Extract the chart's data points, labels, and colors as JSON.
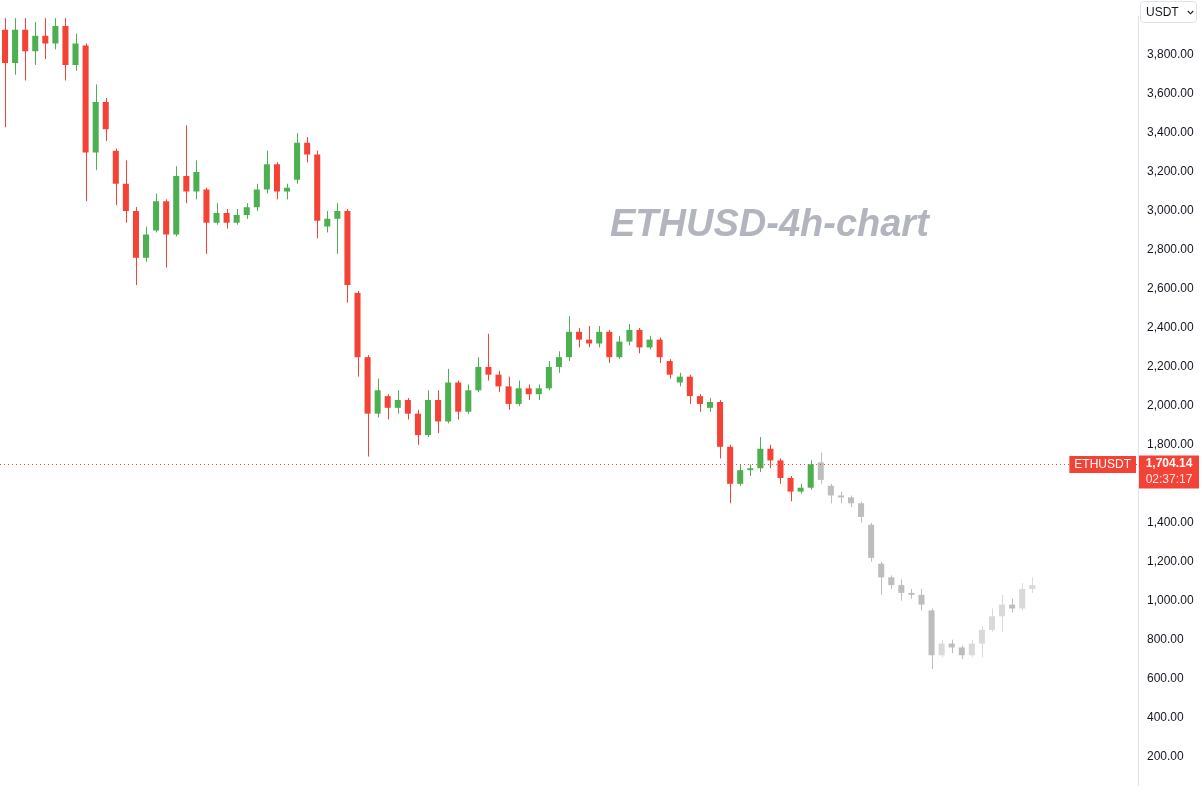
{
  "chart_data": {
    "type": "candlestick",
    "title": "ETHUSD-4h-chart",
    "ylabel": "USDT",
    "tick_labels": "y",
    "categories": [
      null,
      null,
      null,
      null,
      null,
      null,
      null,
      null,
      null,
      null,
      null,
      null,
      null,
      null,
      null,
      null,
      null,
      null,
      null,
      null,
      null,
      null,
      null,
      null,
      null,
      null,
      null,
      null,
      null,
      null,
      null,
      null,
      null,
      null,
      null,
      null,
      null,
      null,
      null,
      null,
      null,
      null,
      null,
      null,
      null,
      null,
      null,
      null,
      null,
      null,
      null,
      null,
      null,
      null,
      null,
      null,
      null,
      null,
      null,
      null,
      null,
      null,
      null,
      null,
      null,
      null,
      null,
      null,
      null,
      null,
      null,
      null,
      null,
      null,
      null,
      null,
      null,
      null,
      null,
      null,
      null,
      null,
      null,
      null,
      null,
      null,
      null,
      null,
      null,
      null,
      null,
      null,
      null,
      null,
      null,
      null,
      null,
      null,
      null,
      null,
      null,
      null,
      null,
      null,
      null,
      null,
      null,
      null,
      null,
      null,
      null,
      null,
      null
    ],
    "series": [
      {
        "ohlc": [
          [
            3930,
            3990,
            3430,
            3760
          ],
          [
            3760,
            3990,
            3700,
            3930
          ],
          [
            3930,
            3990,
            3670,
            3820
          ],
          [
            3820,
            3970,
            3750,
            3900
          ],
          [
            3900,
            3990,
            3780,
            3860
          ],
          [
            3860,
            3990,
            3830,
            3950
          ],
          [
            3950,
            3990,
            3670,
            3750
          ],
          [
            3750,
            3910,
            3720,
            3860
          ],
          [
            3850,
            3860,
            3050,
            3300
          ],
          [
            3300,
            3650,
            3210,
            3560
          ],
          [
            3560,
            3580,
            3360,
            3420
          ],
          [
            3310,
            3320,
            3030,
            3140
          ],
          [
            3140,
            3260,
            2940,
            3000
          ],
          [
            3000,
            3020,
            2620,
            2760
          ],
          [
            2760,
            2920,
            2740,
            2880
          ],
          [
            2900,
            3090,
            2890,
            3050
          ],
          [
            3050,
            3060,
            2710,
            2880
          ],
          [
            2880,
            3230,
            2870,
            3180
          ],
          [
            3180,
            3440,
            3040,
            3100
          ],
          [
            3100,
            3260,
            3060,
            3200
          ],
          [
            3110,
            3120,
            2780,
            2940
          ],
          [
            2940,
            3040,
            2930,
            2990
          ],
          [
            2990,
            3010,
            2910,
            2940
          ],
          [
            2940,
            3010,
            2930,
            2980
          ],
          [
            2980,
            3040,
            2960,
            3020
          ],
          [
            3020,
            3140,
            3000,
            3110
          ],
          [
            3110,
            3310,
            3090,
            3240
          ],
          [
            3240,
            3250,
            3060,
            3100
          ],
          [
            3100,
            3140,
            3060,
            3120
          ],
          [
            3160,
            3400,
            3140,
            3350
          ],
          [
            3350,
            3380,
            3250,
            3290
          ],
          [
            3290,
            3310,
            2860,
            2950
          ],
          [
            2920,
            3000,
            2890,
            2960
          ],
          [
            2960,
            3040,
            2780,
            3000
          ],
          [
            3000,
            3010,
            2530,
            2620
          ],
          [
            2580,
            2590,
            2150,
            2250
          ],
          [
            2250,
            2260,
            1740,
            1960
          ],
          [
            1960,
            2140,
            1940,
            2080
          ],
          [
            2050,
            2060,
            1930,
            1990
          ],
          [
            1990,
            2080,
            1960,
            2030
          ],
          [
            2030,
            2040,
            1930,
            1960
          ],
          [
            1960,
            1980,
            1800,
            1850
          ],
          [
            1850,
            2080,
            1840,
            2030
          ],
          [
            2030,
            2080,
            1860,
            1920
          ],
          [
            1920,
            2190,
            1910,
            2120
          ],
          [
            2120,
            2130,
            1930,
            1970
          ],
          [
            1970,
            2110,
            1960,
            2080
          ],
          [
            2080,
            2250,
            2070,
            2200
          ],
          [
            2200,
            2370,
            2130,
            2160
          ],
          [
            2160,
            2180,
            2070,
            2100
          ],
          [
            2100,
            2150,
            1980,
            2010
          ],
          [
            2010,
            2130,
            2000,
            2090
          ],
          [
            2090,
            2110,
            2030,
            2060
          ],
          [
            2060,
            2110,
            2030,
            2090
          ],
          [
            2090,
            2230,
            2080,
            2200
          ],
          [
            2200,
            2280,
            2170,
            2250
          ],
          [
            2250,
            2460,
            2230,
            2380
          ],
          [
            2380,
            2400,
            2300,
            2340
          ],
          [
            2340,
            2410,
            2300,
            2320
          ],
          [
            2320,
            2410,
            2300,
            2380
          ],
          [
            2380,
            2390,
            2220,
            2250
          ],
          [
            2250,
            2360,
            2240,
            2330
          ],
          [
            2330,
            2420,
            2310,
            2390
          ],
          [
            2390,
            2400,
            2270,
            2300
          ],
          [
            2300,
            2360,
            2290,
            2340
          ],
          [
            2340,
            2350,
            2220,
            2250
          ],
          [
            2230,
            2240,
            2140,
            2160
          ],
          [
            2120,
            2170,
            2100,
            2150
          ],
          [
            2150,
            2160,
            2010,
            2050
          ],
          [
            2050,
            2060,
            1970,
            2010
          ],
          [
            1990,
            2040,
            1970,
            2020
          ],
          [
            2020,
            2030,
            1730,
            1790
          ],
          [
            1790,
            1800,
            1500,
            1600
          ],
          [
            1600,
            1700,
            1590,
            1670
          ],
          [
            1670,
            1700,
            1640,
            1680
          ],
          [
            1680,
            1840,
            1660,
            1780
          ],
          [
            1780,
            1800,
            1680,
            1720
          ],
          [
            1720,
            1730,
            1600,
            1630
          ],
          [
            1630,
            1640,
            1510,
            1560
          ],
          [
            1560,
            1600,
            1550,
            1580
          ],
          [
            1580,
            1720,
            1570,
            1700
          ],
          null,
          null,
          null,
          null,
          null,
          null,
          null,
          null,
          null,
          null,
          null,
          null,
          null,
          null,
          null,
          null,
          null,
          null,
          null,
          null,
          null,
          null,
          null,
          null,
          null,
          null,
          null,
          null,
          null,
          null,
          null,
          null
        ],
        "colors": [
          "#f44336",
          "#4caf50",
          "#f44336",
          "#4caf50",
          "#f44336",
          "#4caf50",
          "#f44336",
          "#4caf50",
          "#f44336",
          "#4caf50",
          "#f44336",
          "#f44336",
          "#f44336",
          "#f44336",
          "#4caf50",
          "#4caf50",
          "#f44336",
          "#4caf50",
          "#f44336",
          "#4caf50",
          "#f44336",
          "#4caf50",
          "#f44336",
          "#4caf50",
          "#4caf50",
          "#4caf50",
          "#4caf50",
          "#f44336",
          "#4caf50",
          "#4caf50",
          "#f44336",
          "#f44336",
          "#4caf50",
          "#4caf50",
          "#f44336",
          "#f44336",
          "#f44336",
          "#4caf50",
          "#f44336",
          "#4caf50",
          "#f44336",
          "#f44336",
          "#4caf50",
          "#f44336",
          "#4caf50",
          "#f44336",
          "#4caf50",
          "#4caf50",
          "#f44336",
          "#f44336",
          "#f44336",
          "#4caf50",
          "#f44336",
          "#4caf50",
          "#4caf50",
          "#4caf50",
          "#4caf50",
          "#f44336",
          "#f44336",
          "#4caf50",
          "#f44336",
          "#4caf50",
          "#4caf50",
          "#f44336",
          "#4caf50",
          "#f44336",
          "#f44336",
          "#4caf50",
          "#f44336",
          "#f44336",
          "#4caf50",
          "#f44336",
          "#f44336",
          "#4caf50",
          "#4caf50",
          "#4caf50",
          "#f44336",
          "#f44336",
          "#f44336",
          "#4caf50",
          "#4caf50",
          null,
          null,
          null,
          null,
          null,
          null,
          null,
          null,
          null,
          null,
          null,
          null,
          null,
          null,
          null,
          null,
          null,
          null,
          null,
          null,
          null,
          null,
          null,
          null,
          null,
          null,
          null,
          null,
          null,
          null,
          null,
          null
        ]
      },
      {
        "ohlc": [
          null,
          null,
          null,
          null,
          null,
          null,
          null,
          null,
          null,
          null,
          null,
          null,
          null,
          null,
          null,
          null,
          null,
          null,
          null,
          null,
          null,
          null,
          null,
          null,
          null,
          null,
          null,
          null,
          null,
          null,
          null,
          null,
          null,
          null,
          null,
          null,
          null,
          null,
          null,
          null,
          null,
          null,
          null,
          null,
          null,
          null,
          null,
          null,
          null,
          null,
          null,
          null,
          null,
          null,
          null,
          null,
          null,
          null,
          null,
          null,
          null,
          null,
          null,
          null,
          null,
          null,
          null,
          null,
          null,
          null,
          null,
          null,
          null,
          null,
          null,
          null,
          null,
          null,
          null,
          null,
          null,
          [
            1710,
            1760,
            1600,
            1620
          ],
          [
            1590,
            1600,
            1500,
            1540
          ],
          [
            1540,
            1560,
            1500,
            1530
          ],
          [
            1530,
            1540,
            1480,
            1500
          ],
          [
            1500,
            1510,
            1400,
            1430
          ],
          [
            1390,
            1400,
            1200,
            1220
          ],
          [
            1190,
            1200,
            1030,
            1120
          ],
          [
            1120,
            1130,
            1060,
            1080
          ],
          [
            1080,
            1110,
            1000,
            1040
          ],
          [
            1040,
            1060,
            1010,
            1030
          ],
          [
            1030,
            1060,
            950,
            980
          ],
          [
            950,
            960,
            650,
            720
          ],
          [
            720,
            800,
            710,
            780
          ],
          [
            780,
            800,
            730,
            760
          ],
          [
            760,
            770,
            700,
            720
          ],
          [
            720,
            800,
            710,
            780
          ],
          [
            780,
            870,
            710,
            850
          ],
          [
            850,
            960,
            840,
            920
          ],
          [
            920,
            1030,
            840,
            980
          ],
          [
            980,
            1010,
            940,
            960
          ],
          [
            960,
            1090,
            950,
            1060
          ],
          [
            1060,
            1120,
            1040,
            1080
          ],
          null,
          null,
          null,
          null,
          null,
          null,
          null,
          null,
          null,
          null
        ],
        "colors": [
          null,
          null,
          null,
          null,
          null,
          null,
          null,
          null,
          null,
          null,
          null,
          null,
          null,
          null,
          null,
          null,
          null,
          null,
          null,
          null,
          null,
          null,
          null,
          null,
          null,
          null,
          null,
          null,
          null,
          null,
          null,
          null,
          null,
          null,
          null,
          null,
          null,
          null,
          null,
          null,
          null,
          null,
          null,
          null,
          null,
          null,
          null,
          null,
          null,
          null,
          null,
          null,
          null,
          null,
          null,
          null,
          null,
          null,
          null,
          null,
          null,
          null,
          null,
          null,
          null,
          null,
          null,
          null,
          null,
          null,
          null,
          null,
          null,
          null,
          null,
          null,
          null,
          null,
          null,
          null,
          null,
          "#bdbdbd",
          "#bdbdbd",
          "#bdbdbd",
          "#bdbdbd",
          "#bdbdbd",
          "#bdbdbd",
          "#bdbdbd",
          "#bdbdbd",
          "#bdbdbd",
          "#bdbdbd",
          "#bdbdbd",
          "#bdbdbd",
          "#d9d9d9",
          "#bdbdbd",
          "#bdbdbd",
          "#d9d9d9",
          "#d9d9d9",
          "#d9d9d9",
          "#d9d9d9",
          "#bdbdbd",
          "#d9d9d9",
          "#d9d9d9",
          null,
          null,
          null,
          null,
          null,
          null,
          null,
          null,
          null,
          null
        ]
      }
    ],
    "ylim": [
      50,
      4000
    ],
    "yticks": [
      {
        "value": 200,
        "label": "200.00"
      },
      {
        "value": 400,
        "label": "400.00"
      },
      {
        "value": 600,
        "label": "600.00"
      },
      {
        "value": 800,
        "label": "800.00"
      },
      {
        "value": 1000,
        "label": "1,000.00"
      },
      {
        "value": 1200,
        "label": "1,200.00"
      },
      {
        "value": 1400,
        "label": "1,400.00"
      },
      {
        "value": 1800,
        "label": "1,800.00"
      },
      {
        "value": 2000,
        "label": "2,000.00"
      },
      {
        "value": 2200,
        "label": "2,200.00"
      },
      {
        "value": 2400,
        "label": "2,400.00"
      },
      {
        "value": 2600,
        "label": "2,600.00"
      },
      {
        "value": 2800,
        "label": "2,800.00"
      },
      {
        "value": 3000,
        "label": "3,000.00"
      },
      {
        "value": 3200,
        "label": "3,200.00"
      },
      {
        "value": 3400,
        "label": "3,400.00"
      },
      {
        "value": 3600,
        "label": "3,600.00"
      },
      {
        "value": 3800,
        "label": "3,800.00"
      }
    ],
    "ref_lines": [
      {
        "axis": "y",
        "value": 1704.14,
        "label": "ETHUSDT",
        "color": "#f44336",
        "line_style": "dotted"
      }
    ],
    "annotations": [
      "1,704.14",
      "02:37:17"
    ]
  }
}
